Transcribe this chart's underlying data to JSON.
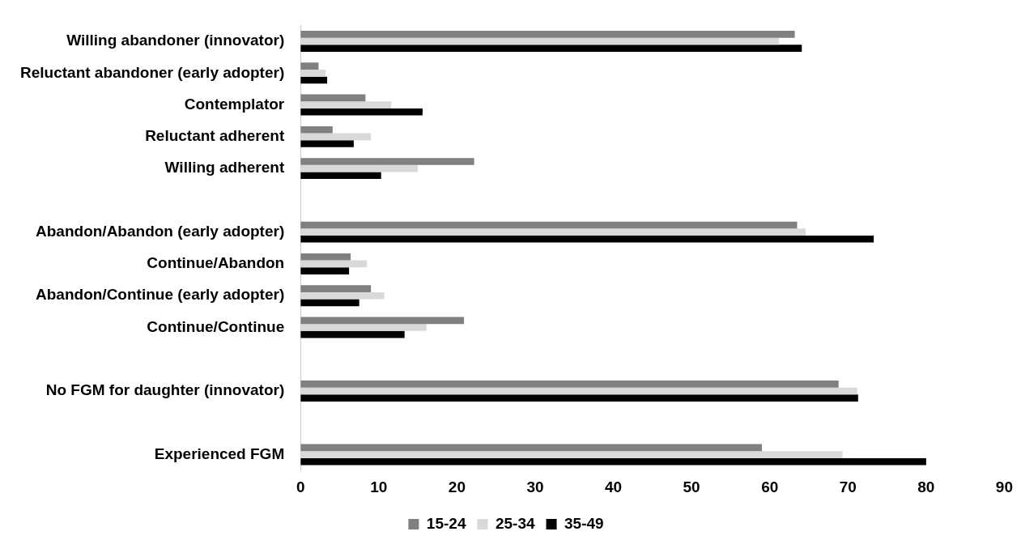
{
  "chart_data": {
    "type": "bar",
    "orientation": "horizontal",
    "categories": [
      "Willing abandoner (innovator)",
      "Reluctant abandoner (early adopter)",
      "Contemplator",
      "Reluctant adherent",
      "Willing adherent",
      null,
      "Abandon/Abandon (early adopter)",
      "Continue/Abandon",
      "Abandon/Continue (early adopter)",
      "Continue/Continue",
      null,
      "No FGM for daughter (innovator)",
      null,
      "Experienced FGM"
    ],
    "series": [
      {
        "name": "15-24",
        "color": "#808080",
        "values": [
          63.2,
          2.3,
          8.3,
          4.1,
          22.2,
          null,
          63.5,
          6.4,
          9.0,
          20.9,
          null,
          68.8,
          null,
          59.0
        ]
      },
      {
        "name": "25-34",
        "color": "#d9d9d9",
        "values": [
          61.2,
          3.2,
          11.6,
          9.0,
          15.0,
          null,
          64.6,
          8.5,
          10.7,
          16.1,
          null,
          71.2,
          null,
          69.3
        ]
      },
      {
        "name": "35-49",
        "color": "#000000",
        "values": [
          64.1,
          3.4,
          15.6,
          6.8,
          10.3,
          null,
          73.3,
          6.2,
          7.5,
          13.3,
          null,
          71.3,
          null,
          80.0
        ]
      }
    ],
    "xlim": [
      0,
      90
    ],
    "xticks": [
      0,
      10,
      20,
      30,
      40,
      50,
      60,
      70,
      80,
      90
    ],
    "grid": false,
    "legend": "bottom"
  }
}
